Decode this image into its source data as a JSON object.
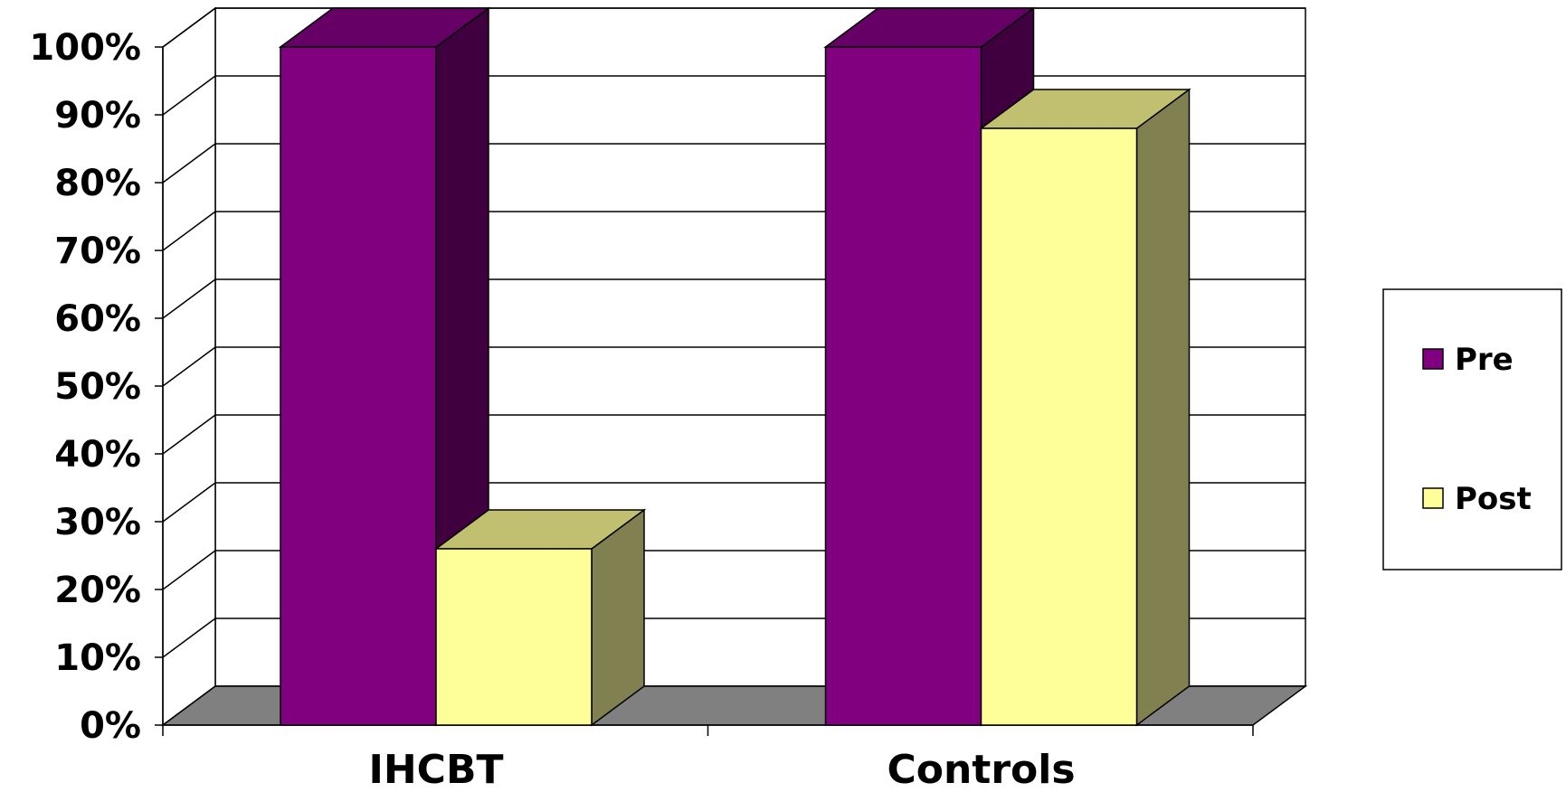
{
  "chart_data": {
    "type": "bar",
    "title": "",
    "xlabel": "",
    "ylabel": "",
    "categories": [
      "IHCBT",
      "Controls"
    ],
    "series": [
      {
        "name": "Pre",
        "values": [
          100,
          100
        ],
        "color": "#800080",
        "top_color": "#660066",
        "side_color": "#400040"
      },
      {
        "name": "Post",
        "values": [
          26,
          88
        ],
        "color": "#FFFF99",
        "top_color": "#C0C070",
        "side_color": "#808050"
      }
    ],
    "ylim": [
      0,
      100
    ],
    "yticks": [
      "0%",
      "10%",
      "20%",
      "30%",
      "40%",
      "50%",
      "60%",
      "70%",
      "80%",
      "90%",
      "100%"
    ],
    "grid": true,
    "legend_position": "right",
    "floor_color": "#808080"
  }
}
